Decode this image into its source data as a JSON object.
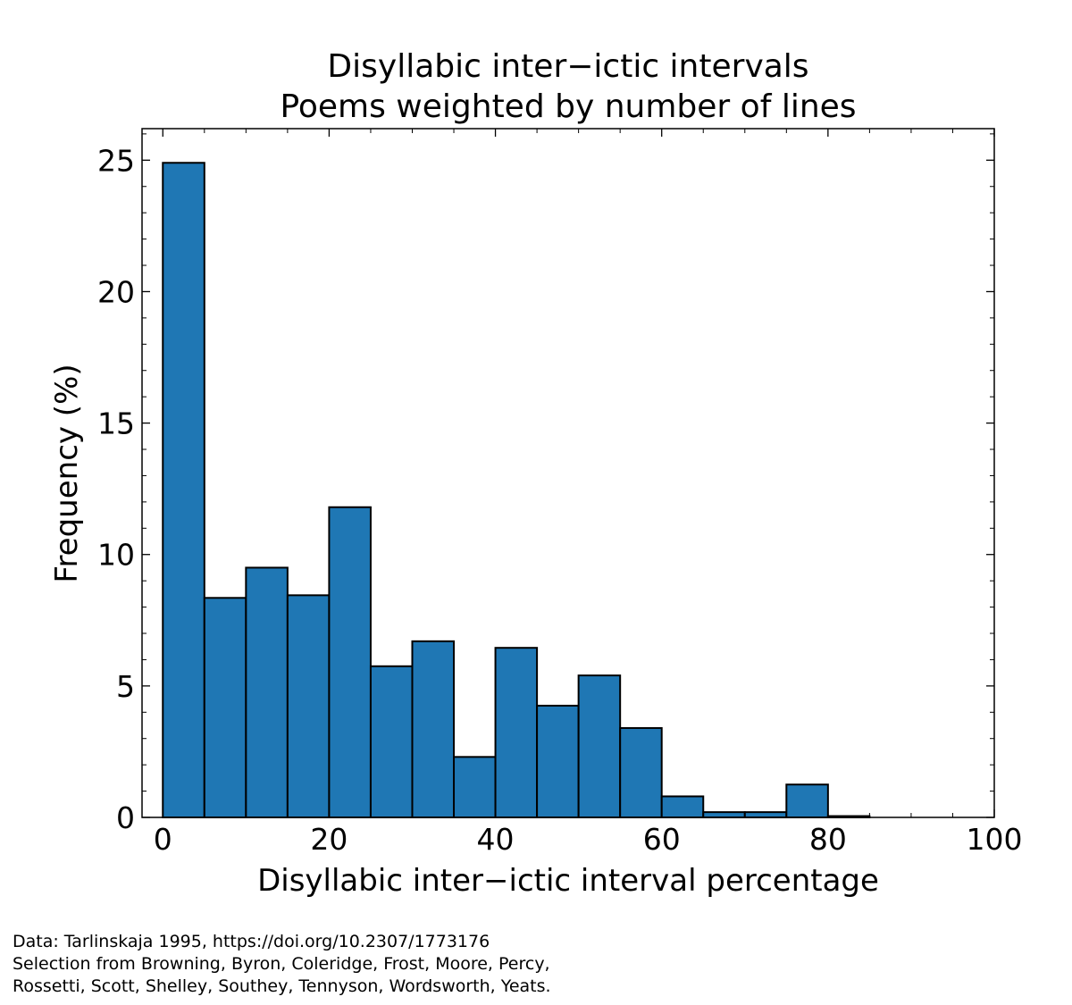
{
  "chart_data": {
    "type": "bar",
    "title": "Disyllabic inter−ictic intervals",
    "subtitle": "Poems weighted by number of lines",
    "xlabel": "Disyllabic inter−ictic interval percentage",
    "ylabel": "Frequency (%)",
    "xlim": [
      -2.5,
      100
    ],
    "ylim": [
      0,
      26.2
    ],
    "x_ticks": [
      0,
      20,
      40,
      60,
      80,
      100
    ],
    "y_ticks": [
      0,
      5,
      10,
      15,
      20,
      25
    ],
    "bin_width": 5,
    "bins": [
      0,
      5,
      10,
      15,
      20,
      25,
      30,
      35,
      40,
      45,
      50,
      55,
      60,
      65,
      70,
      75,
      80
    ],
    "values": [
      24.9,
      8.35,
      9.5,
      8.45,
      11.8,
      5.75,
      6.7,
      2.3,
      6.45,
      4.25,
      5.4,
      3.4,
      0.8,
      0.2,
      0.2,
      1.25,
      0.05
    ],
    "bar_color": "#1f77b4",
    "edge_color": "#000000",
    "grid": false,
    "legend": "none"
  },
  "footnote": {
    "lines": [
      "Data: Tarlinskaja 1995, https://doi.org/10.2307/1773176",
      "Selection from Browning, Byron, Coleridge, Frost, Moore, Percy,",
      "Rossetti, Scott, Shelley, Southey, Tennyson, Wordsworth, Yeats."
    ]
  }
}
